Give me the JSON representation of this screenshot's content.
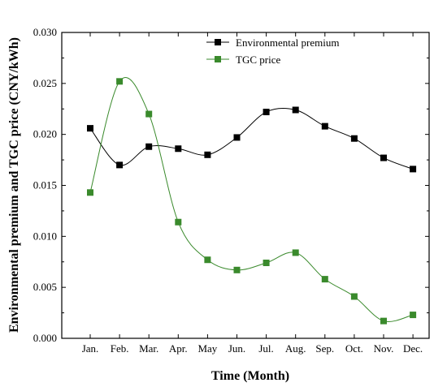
{
  "chart_data": {
    "type": "line",
    "xlabel": "Time (Month)",
    "ylabel": "Environmental premium and TGC price (CNY/kWh)",
    "categories": [
      "Jan.",
      "Feb.",
      "Mar.",
      "Apr.",
      "May",
      "Jun.",
      "Jul.",
      "Aug.",
      "Sep.",
      "Oct.",
      "Nov.",
      "Dec."
    ],
    "ylim": [
      0,
      0.03
    ],
    "yticks": [
      "0.000",
      "0.005",
      "0.010",
      "0.015",
      "0.020",
      "0.025",
      "0.030"
    ],
    "ytick_values": [
      0,
      0.005,
      0.01,
      0.015,
      0.02,
      0.025,
      0.03
    ],
    "grid": false,
    "legend_position": "top-right",
    "series": [
      {
        "name": "Environmental premium",
        "color": "#000000",
        "marker": "square",
        "smooth": true,
        "values": [
          0.0206,
          0.017,
          0.0188,
          0.0186,
          0.018,
          0.0197,
          0.0222,
          0.0224,
          0.0208,
          0.0196,
          0.0177,
          0.0166
        ]
      },
      {
        "name": "TGC price",
        "color": "#3a8a2c",
        "marker": "square",
        "smooth": true,
        "values": [
          0.0143,
          0.0252,
          0.022,
          0.0114,
          0.0077,
          0.0067,
          0.0074,
          0.0084,
          0.0058,
          0.0041,
          0.0017,
          0.0023
        ]
      }
    ]
  }
}
